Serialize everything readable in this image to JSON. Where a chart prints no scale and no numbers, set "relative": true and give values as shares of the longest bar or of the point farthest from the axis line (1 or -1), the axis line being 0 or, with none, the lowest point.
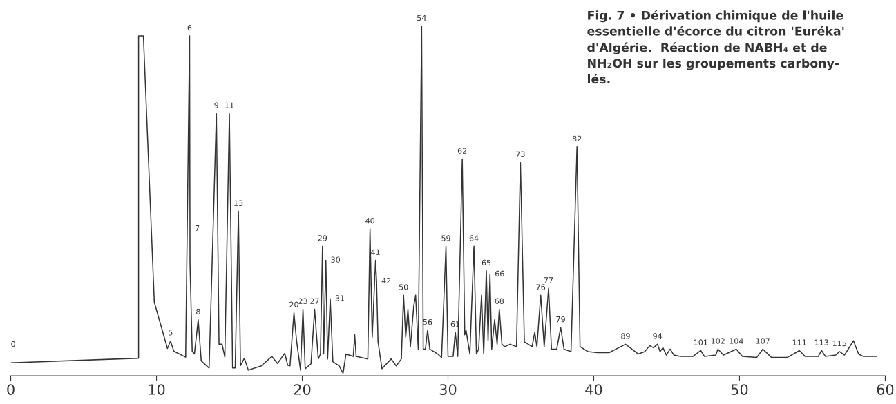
{
  "chart_data": {
    "type": "line",
    "relative": true,
    "title": "Fig. 7 • Dérivation chimique de l'huile\nessentielle d'écorce du citron 'Euréka'\nd'Algérie.  Réaction de NABH₄ et de\nNH₂OH sur les groupements carbony-\nlés.",
    "xlim": [
      0,
      60
    ],
    "xticks": [
      0,
      10,
      20,
      30,
      40,
      50,
      60
    ],
    "grid": false,
    "legend": false,
    "marker": "none",
    "line_style": "solid",
    "series": [
      {
        "color": "#333333",
        "x": [
          0,
          8.77,
          8.77,
          9.1,
          9.85,
          10.75,
          10.96,
          11.19,
          12.0,
          12.27,
          12.3,
          12.45,
          12.6,
          12.86,
          13.07,
          13.61,
          14.11,
          14.29,
          14.5,
          14.69,
          15.0,
          15.22,
          15.4,
          15.62,
          15.76,
          16.03,
          16.3,
          17.19,
          17.91,
          18.3,
          18.8,
          19.0,
          19.16,
          19.43,
          19.61,
          19.88,
          20.05,
          20.2,
          20.6,
          20.85,
          21.1,
          21.25,
          21.39,
          21.47,
          21.62,
          21.74,
          21.92,
          22.1,
          22.54,
          22.8,
          23.0,
          23.5,
          23.6,
          23.7,
          24.5,
          24.65,
          24.8,
          25.03,
          25.1,
          25.2,
          25.47,
          26.1,
          26.45,
          26.8,
          26.95,
          27.1,
          27.25,
          27.42,
          27.65,
          27.78,
          27.96,
          28.19,
          28.3,
          28.45,
          28.6,
          28.75,
          29.3,
          29.56,
          29.86,
          30.0,
          30.35,
          30.5,
          30.67,
          30.98,
          31.15,
          31.24,
          31.5,
          31.78,
          31.95,
          32.1,
          32.3,
          32.45,
          32.63,
          32.75,
          32.88,
          33.0,
          33.2,
          33.37,
          33.52,
          33.7,
          33.9,
          34.26,
          34.7,
          34.97,
          35.24,
          35.77,
          35.95,
          36.1,
          36.36,
          36.6,
          36.9,
          37.1,
          37.46,
          37.73,
          37.96,
          38.44,
          38.85,
          39.06,
          39.6,
          40.25,
          41.05,
          42.18,
          43.06,
          43.5,
          43.84,
          44.1,
          44.37,
          44.55,
          44.75,
          44.98,
          45.24,
          45.5,
          45.94,
          46.8,
          47.34,
          47.6,
          48.38,
          48.52,
          48.9,
          49.78,
          50.2,
          51.18,
          51.6,
          52.2,
          53.27,
          54.11,
          54.5,
          55.4,
          55.63,
          55.9,
          56.6,
          56.86,
          57.2,
          57.82,
          58.17,
          58.5,
          59.39
        ],
        "values": [
          0.037,
          0.05,
          0.972,
          0.972,
          0.21,
          0.078,
          0.099,
          0.07,
          0.053,
          0.972,
          0.32,
          0.07,
          0.062,
          0.16,
          0.042,
          0.022,
          0.75,
          0.09,
          0.09,
          0.053,
          0.75,
          0.022,
          0.022,
          0.47,
          0.029,
          0.05,
          0.016,
          0.028,
          0.055,
          0.035,
          0.064,
          0.03,
          0.028,
          0.18,
          0.1,
          0.016,
          0.19,
          0.02,
          0.034,
          0.19,
          0.048,
          0.062,
          0.37,
          0.062,
          0.33,
          0.048,
          0.22,
          0.04,
          0.028,
          0.007,
          0.062,
          0.055,
          0.117,
          0.055,
          0.048,
          0.42,
          0.11,
          0.33,
          0.27,
          0.097,
          0.02,
          0.048,
          0.028,
          0.048,
          0.23,
          0.11,
          0.19,
          0.083,
          0.2,
          0.23,
          0.076,
          1.0,
          0.076,
          0.076,
          0.13,
          0.076,
          0.062,
          0.052,
          0.37,
          0.055,
          0.055,
          0.124,
          0.055,
          0.62,
          0.117,
          0.13,
          0.062,
          0.37,
          0.062,
          0.076,
          0.23,
          0.062,
          0.3,
          0.1,
          0.29,
          0.076,
          0.16,
          0.09,
          0.19,
          0.09,
          0.083,
          0.09,
          0.083,
          0.61,
          0.097,
          0.083,
          0.124,
          0.083,
          0.23,
          0.083,
          0.25,
          0.076,
          0.076,
          0.138,
          0.076,
          0.069,
          0.655,
          0.083,
          0.069,
          0.066,
          0.066,
          0.09,
          0.062,
          0.069,
          0.086,
          0.08,
          0.09,
          0.069,
          0.08,
          0.059,
          0.076,
          0.059,
          0.055,
          0.055,
          0.072,
          0.055,
          0.059,
          0.076,
          0.059,
          0.076,
          0.055,
          0.052,
          0.076,
          0.052,
          0.052,
          0.072,
          0.055,
          0.055,
          0.072,
          0.055,
          0.059,
          0.069,
          0.059,
          0.1,
          0.062,
          0.055,
          0.055
        ]
      }
    ],
    "annotations": [
      "0",
      {
        "text": "5",
        "x": 10.96,
        "y": 0.1
      },
      {
        "text": "6",
        "x": 12.27,
        "y": 0.972
      },
      {
        "text": "7",
        "x": 12.3,
        "y": 0.42
      },
      {
        "text": "8",
        "x": 12.86,
        "y": 0.16
      },
      {
        "text": "9",
        "x": 14.11,
        "y": 0.75
      },
      {
        "text": "11",
        "x": 15.0,
        "y": 0.75
      },
      {
        "text": "13",
        "x": 15.62,
        "y": 0.47
      },
      {
        "text": "20",
        "x": 19.43,
        "y": 0.18
      },
      {
        "text": "23",
        "x": 20.05,
        "y": 0.19
      },
      {
        "text": "27",
        "x": 20.85,
        "y": 0.19
      },
      {
        "text": "29",
        "x": 21.39,
        "y": 0.37
      },
      {
        "text": "30",
        "x": 21.62,
        "y": 0.33
      },
      {
        "text": "31",
        "x": 21.92,
        "y": 0.22
      },
      {
        "text": "40",
        "x": 24.65,
        "y": 0.42
      },
      {
        "text": "41",
        "x": 25.03,
        "y": 0.33
      },
      {
        "text": "42",
        "x": 25.1,
        "y": 0.27
      },
      {
        "text": "50",
        "x": 26.95,
        "y": 0.23
      },
      {
        "text": "54",
        "x": 28.19,
        "y": 1.0
      },
      {
        "text": "56",
        "x": 28.6,
        "y": 0.13
      },
      {
        "text": "59",
        "x": 29.86,
        "y": 0.37
      },
      {
        "text": "61",
        "x": 30.5,
        "y": 0.124
      },
      {
        "text": "62",
        "x": 30.98,
        "y": 0.62
      },
      {
        "text": "64",
        "x": 31.78,
        "y": 0.37
      },
      {
        "text": "65",
        "x": 32.63,
        "y": 0.3
      },
      {
        "text": "66",
        "x": 32.88,
        "y": 0.29
      },
      {
        "text": "68",
        "x": 33.52,
        "y": 0.19
      },
      {
        "text": "73",
        "x": 34.97,
        "y": 0.61
      },
      {
        "text": "76",
        "x": 36.36,
        "y": 0.23
      },
      {
        "text": "77",
        "x": 36.9,
        "y": 0.25
      },
      {
        "text": "79",
        "x": 37.73,
        "y": 0.138
      },
      {
        "text": "82",
        "x": 38.85,
        "y": 0.655
      },
      {
        "text": "89",
        "x": 42.18,
        "y": 0.09
      },
      {
        "text": "94",
        "x": 44.37,
        "y": 0.09
      },
      {
        "text": "101",
        "x": 47.34,
        "y": 0.072
      },
      {
        "text": "102",
        "x": 48.52,
        "y": 0.076
      },
      {
        "text": "104",
        "x": 49.78,
        "y": 0.076
      },
      {
        "text": "107",
        "x": 51.6,
        "y": 0.076
      },
      {
        "text": "111",
        "x": 54.11,
        "y": 0.072
      },
      {
        "text": "113",
        "x": 55.63,
        "y": 0.072
      },
      {
        "text": "115",
        "x": 56.86,
        "y": 0.069
      }
    ]
  }
}
